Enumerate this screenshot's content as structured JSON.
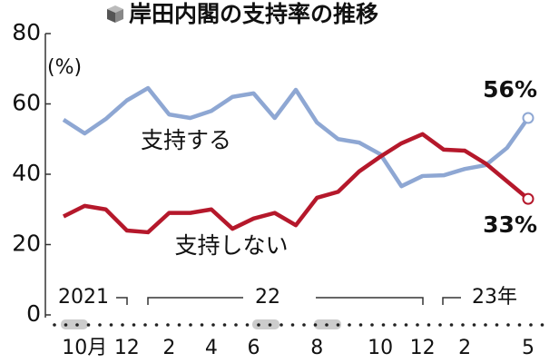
{
  "chart_data": {
    "type": "line",
    "title": "岸田内閣の支持率の推移",
    "unit_label": "(%)",
    "categories": [
      null,
      "10月",
      null,
      "12",
      null,
      "2",
      null,
      "4",
      null,
      "6",
      null,
      null,
      "8",
      null,
      null,
      "10",
      null,
      "12",
      null,
      "2",
      null,
      null,
      "5"
    ],
    "year_labels": [
      "2021",
      "22",
      "23年"
    ],
    "ylim": [
      0,
      80
    ],
    "yticks": [
      0,
      20,
      40,
      60,
      80
    ],
    "series": [
      {
        "name": "支持する",
        "color": "#8ea7d3",
        "values": [
          55.5,
          51.6,
          55.7,
          61,
          64.5,
          57,
          56,
          58,
          62,
          63,
          56,
          64,
          54.7,
          50,
          49,
          45.7,
          36.6,
          39.5,
          39.7,
          41.5,
          42.6,
          47.5,
          56
        ],
        "value_labels": [
          null,
          null,
          null,
          null,
          null,
          null,
          null,
          null,
          null,
          null,
          null,
          null,
          null,
          null,
          null,
          null,
          null,
          null,
          null,
          null,
          null,
          null,
          "56%"
        ]
      },
      {
        "name": "支持しない",
        "color": "#b5182b",
        "values": [
          28,
          31,
          30,
          24,
          23.5,
          29,
          29,
          30,
          24.5,
          27.4,
          29,
          25.5,
          33.3,
          35,
          40.8,
          45,
          48.8,
          51.4,
          47,
          46.7,
          43,
          38,
          33
        ],
        "value_labels": [
          null,
          null,
          null,
          null,
          null,
          null,
          null,
          null,
          null,
          null,
          null,
          null,
          null,
          null,
          null,
          null,
          null,
          null,
          null,
          null,
          null,
          null,
          "33%"
        ]
      }
    ]
  }
}
